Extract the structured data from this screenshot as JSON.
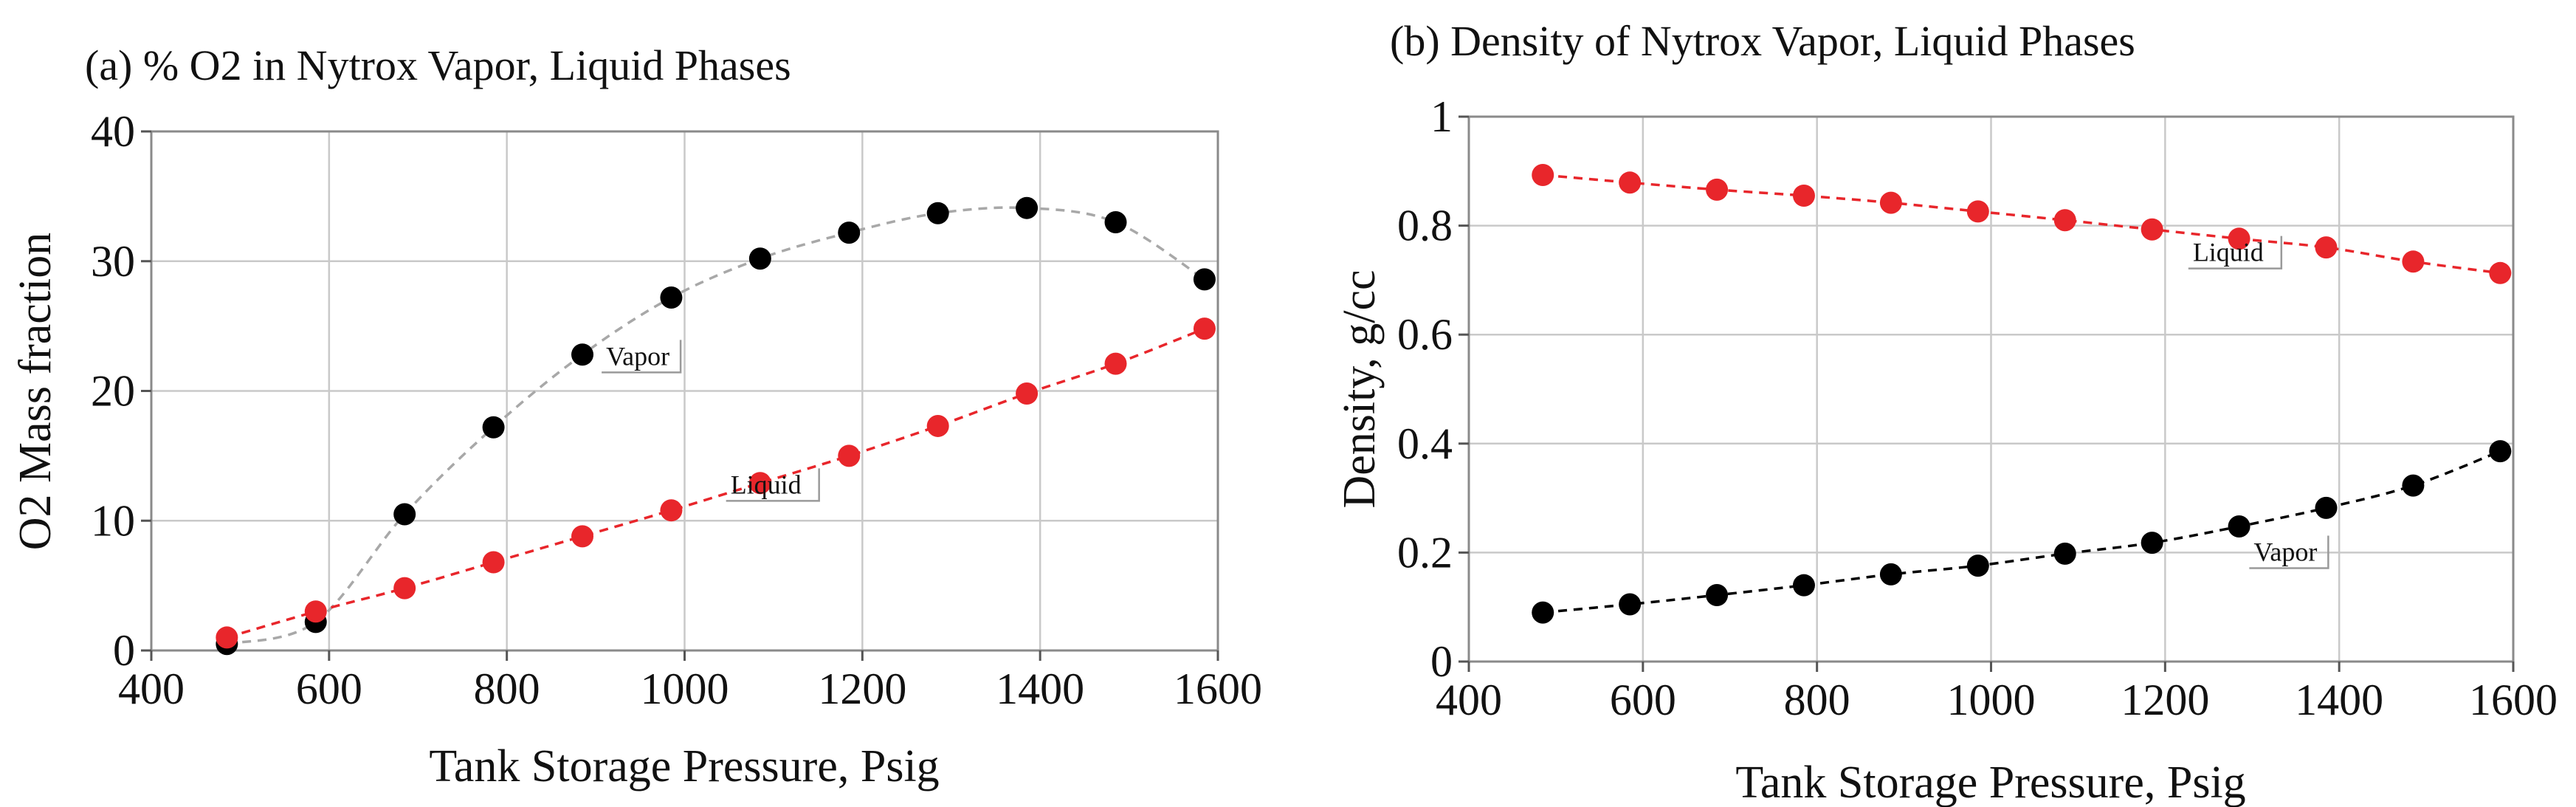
{
  "chart_data": [
    {
      "type": "scatter",
      "title": "(a) % O2 in Nytrox Vapor, Liquid Phases",
      "xlabel": "Tank Storage Pressure, Psig",
      "ylabel": "O2 Mass fraction",
      "xlim": [
        400,
        1600
      ],
      "ylim": [
        0,
        40
      ],
      "xticks": [
        "400",
        "600",
        "800",
        "1000",
        "1200",
        "1400",
        "1600"
      ],
      "yticks": [
        "0",
        "10",
        "20",
        "30",
        "40"
      ],
      "grid": true,
      "series": [
        {
          "name": "Vapor",
          "color": "#000000",
          "curve_color": "#a8a8a8",
          "x": [
            485,
            585,
            685,
            785,
            885,
            985,
            1085,
            1185,
            1285,
            1385,
            1485,
            1585
          ],
          "y": [
            0.5,
            2.2,
            10.5,
            17.2,
            22.8,
            27.2,
            30.2,
            32.2,
            33.7,
            34.1,
            33.0,
            28.6
          ]
        },
        {
          "name": "Liquid",
          "color": "#e8262b",
          "curve_color": "#e8262b",
          "x": [
            485,
            585,
            685,
            785,
            885,
            985,
            1085,
            1185,
            1285,
            1385,
            1485,
            1585
          ],
          "y": [
            1.0,
            3.0,
            4.8,
            6.8,
            8.8,
            10.8,
            12.9,
            15.0,
            17.3,
            19.8,
            22.1,
            24.8
          ]
        }
      ],
      "annotations": [
        {
          "text": "Vapor",
          "x": 905,
          "y": 22.0
        },
        {
          "text": "Liquid",
          "x": 1045,
          "y": 12.1
        }
      ]
    },
    {
      "type": "scatter",
      "title": "(b) Density of Nytrox Vapor, Liquid Phases",
      "xlabel": "Tank Storage Pressure, Psig",
      "ylabel": "Density, g/cc",
      "xlim": [
        400,
        1600
      ],
      "ylim": [
        0,
        1
      ],
      "xticks": [
        "400",
        "600",
        "800",
        "1000",
        "1200",
        "1400",
        "1600"
      ],
      "yticks": [
        "0",
        "0.2",
        "0.4",
        "0.6",
        "0.8",
        "1"
      ],
      "grid": true,
      "series": [
        {
          "name": "Liquid",
          "color": "#e8262b",
          "curve_color": "#e8262b",
          "x": [
            485,
            585,
            685,
            785,
            885,
            985,
            1085,
            1185,
            1285,
            1385,
            1485,
            1585
          ],
          "y": [
            0.893,
            0.879,
            0.866,
            0.855,
            0.842,
            0.826,
            0.81,
            0.793,
            0.776,
            0.76,
            0.734,
            0.713
          ]
        },
        {
          "name": "Vapor",
          "color": "#000000",
          "curve_color": "#000000",
          "x": [
            485,
            585,
            685,
            785,
            885,
            985,
            1085,
            1185,
            1285,
            1385,
            1485,
            1585
          ],
          "y": [
            0.09,
            0.105,
            0.122,
            0.14,
            0.16,
            0.176,
            0.198,
            0.218,
            0.248,
            0.282,
            0.323,
            0.386
          ]
        }
      ],
      "annotations": [
        {
          "text": "Liquid",
          "x": 1225,
          "y": 0.735
        },
        {
          "text": "Vapor",
          "x": 1295,
          "y": 0.185
        }
      ]
    }
  ]
}
